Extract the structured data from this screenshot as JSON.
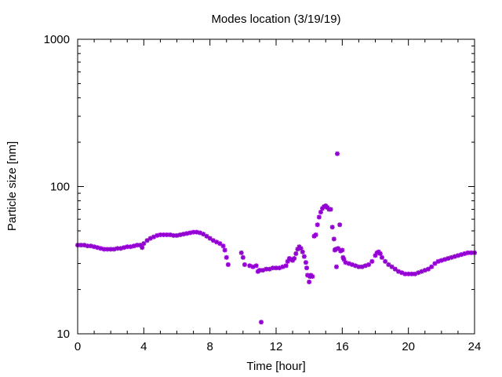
{
  "chart_data": {
    "type": "scatter",
    "title": "Modes location (3/19/19)",
    "xlabel": "Time [hour]",
    "ylabel": "Particle size [nm]",
    "xlim": [
      0,
      24
    ],
    "ylim": [
      10,
      1000
    ],
    "y_scale": "log",
    "x_ticks": [
      0,
      4,
      8,
      12,
      16,
      20,
      24
    ],
    "x_tick_labels": [
      "0",
      "4",
      "8",
      "12",
      "16",
      "20",
      "24"
    ],
    "y_ticks": [
      10,
      100,
      1000
    ],
    "y_tick_labels": [
      "10",
      "100",
      "1000"
    ],
    "grid": false,
    "legend": "none",
    "marker": "asterisk",
    "marker_color": "#9400d3",
    "series": [
      {
        "points": [
          [
            0.0,
            40
          ],
          [
            0.2,
            40
          ],
          [
            0.4,
            40
          ],
          [
            0.6,
            39.5
          ],
          [
            0.8,
            39.5
          ],
          [
            1.0,
            39
          ],
          [
            1.2,
            38.5
          ],
          [
            1.4,
            38
          ],
          [
            1.6,
            37.5
          ],
          [
            1.8,
            37.5
          ],
          [
            2.0,
            37.5
          ],
          [
            2.2,
            37.5
          ],
          [
            2.4,
            38
          ],
          [
            2.6,
            38
          ],
          [
            2.8,
            38.5
          ],
          [
            3.0,
            39
          ],
          [
            3.2,
            39
          ],
          [
            3.4,
            39.5
          ],
          [
            3.6,
            40
          ],
          [
            3.8,
            40
          ],
          [
            3.9,
            38.5
          ],
          [
            4.0,
            41
          ],
          [
            4.2,
            43
          ],
          [
            4.4,
            44.5
          ],
          [
            4.6,
            45.5
          ],
          [
            4.8,
            46.5
          ],
          [
            5.0,
            47
          ],
          [
            5.2,
            47
          ],
          [
            5.4,
            47
          ],
          [
            5.6,
            47
          ],
          [
            5.8,
            46.5
          ],
          [
            6.0,
            46.5
          ],
          [
            6.2,
            47
          ],
          [
            6.4,
            47.5
          ],
          [
            6.6,
            48
          ],
          [
            6.8,
            48.5
          ],
          [
            7.0,
            49
          ],
          [
            7.2,
            49
          ],
          [
            7.4,
            48.5
          ],
          [
            7.6,
            47.5
          ],
          [
            7.8,
            46
          ],
          [
            8.0,
            44.5
          ],
          [
            8.2,
            43
          ],
          [
            8.4,
            42
          ],
          [
            8.6,
            41
          ],
          [
            8.8,
            39.5
          ],
          [
            8.9,
            37
          ],
          [
            9.0,
            33
          ],
          [
            9.1,
            29.5
          ],
          [
            9.9,
            35.5
          ],
          [
            10.0,
            33
          ],
          [
            10.1,
            29.5
          ],
          [
            10.4,
            29
          ],
          [
            10.6,
            28.5
          ],
          [
            10.8,
            29
          ],
          [
            10.9,
            26.5
          ],
          [
            11.0,
            27
          ],
          [
            11.1,
            12
          ],
          [
            11.2,
            27
          ],
          [
            11.4,
            27.5
          ],
          [
            11.6,
            27.5
          ],
          [
            11.8,
            28
          ],
          [
            12.0,
            28
          ],
          [
            12.2,
            28
          ],
          [
            12.4,
            28.5
          ],
          [
            12.6,
            29
          ],
          [
            12.7,
            31
          ],
          [
            12.8,
            32.5
          ],
          [
            12.9,
            32
          ],
          [
            13.0,
            31.5
          ],
          [
            13.1,
            32.5
          ],
          [
            13.2,
            35
          ],
          [
            13.3,
            37.5
          ],
          [
            13.4,
            39
          ],
          [
            13.5,
            38
          ],
          [
            13.6,
            36
          ],
          [
            13.7,
            33.5
          ],
          [
            13.8,
            30.5
          ],
          [
            13.85,
            28
          ],
          [
            13.9,
            25
          ],
          [
            14.0,
            22.5
          ],
          [
            14.05,
            24.5
          ],
          [
            14.1,
            25
          ],
          [
            14.2,
            24.5
          ],
          [
            14.3,
            46
          ],
          [
            14.4,
            47
          ],
          [
            14.5,
            55
          ],
          [
            14.6,
            62
          ],
          [
            14.7,
            67
          ],
          [
            14.8,
            71
          ],
          [
            14.9,
            73
          ],
          [
            15.0,
            74
          ],
          [
            15.1,
            72
          ],
          [
            15.2,
            70
          ],
          [
            15.3,
            70
          ],
          [
            15.4,
            53
          ],
          [
            15.5,
            44
          ],
          [
            15.55,
            37
          ],
          [
            15.6,
            37.5
          ],
          [
            15.65,
            28.5
          ],
          [
            15.7,
            167
          ],
          [
            15.75,
            38
          ],
          [
            15.85,
            55
          ],
          [
            15.9,
            36.5
          ],
          [
            16.0,
            37
          ],
          [
            16.05,
            33
          ],
          [
            16.1,
            32
          ],
          [
            16.2,
            30.5
          ],
          [
            16.4,
            30
          ],
          [
            16.6,
            29.5
          ],
          [
            16.8,
            29
          ],
          [
            17.0,
            28.5
          ],
          [
            17.2,
            28.5
          ],
          [
            17.4,
            29
          ],
          [
            17.6,
            29.5
          ],
          [
            17.8,
            31
          ],
          [
            18.0,
            34
          ],
          [
            18.1,
            35.5
          ],
          [
            18.2,
            36
          ],
          [
            18.3,
            35
          ],
          [
            18.4,
            33
          ],
          [
            18.6,
            31
          ],
          [
            18.8,
            29.5
          ],
          [
            19.0,
            28.5
          ],
          [
            19.2,
            27.5
          ],
          [
            19.4,
            26.5
          ],
          [
            19.6,
            26
          ],
          [
            19.8,
            25.5
          ],
          [
            20.0,
            25.5
          ],
          [
            20.2,
            25.5
          ],
          [
            20.4,
            25.5
          ],
          [
            20.6,
            26
          ],
          [
            20.8,
            26.5
          ],
          [
            21.0,
            27
          ],
          [
            21.2,
            27.5
          ],
          [
            21.4,
            28.5
          ],
          [
            21.6,
            30
          ],
          [
            21.8,
            31
          ],
          [
            22.0,
            31.5
          ],
          [
            22.2,
            32
          ],
          [
            22.4,
            32.5
          ],
          [
            22.6,
            33
          ],
          [
            22.8,
            33.5
          ],
          [
            23.0,
            34
          ],
          [
            23.2,
            34.5
          ],
          [
            23.4,
            35
          ],
          [
            23.6,
            35.5
          ],
          [
            23.8,
            35.5
          ],
          [
            24.0,
            35.5
          ]
        ]
      }
    ]
  }
}
